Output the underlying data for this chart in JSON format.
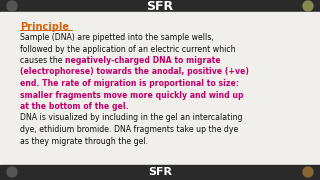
{
  "bg_color": "#f0efeb",
  "title_color": "#d4640a",
  "highlight_color": "#c0006a",
  "body_color": "#111111",
  "title": "Principle",
  "lines": [
    {
      "text": "Sample (DNA) are pipetted into the sample wells,",
      "color": "body",
      "bold": false
    },
    {
      "text": "followed by the application of an electric current which",
      "color": "body",
      "bold": false
    },
    {
      "text": "causes the ",
      "color": "body",
      "bold": false,
      "mixed": true,
      "rest": "negatively-charged DNA to migrate"
    },
    {
      "text": "(electrophorese) towards the anodal, positive (+ve)",
      "color": "highlight",
      "bold": true
    },
    {
      "text": "end. The rate of migration is proportional to size:",
      "color": "highlight",
      "bold": true
    },
    {
      "text": "smaller fragments move more quickly and wind up",
      "color": "highlight",
      "bold": true
    },
    {
      "text": "at the bottom of the gel.",
      "color": "highlight",
      "bold": true
    },
    {
      "text": "DNA is visualized by including in the gel an intercalating",
      "color": "body",
      "bold": false
    },
    {
      "text": "dye, ethidium bromide. DNA fragments take up the dye",
      "color": "body",
      "bold": false
    },
    {
      "text": "as they migrate through the gel.",
      "color": "body",
      "bold": false
    }
  ],
  "header_text": "SFR",
  "footer_text": "SFR",
  "top_bar_color": "#333333",
  "figsize": [
    3.2,
    1.8
  ],
  "dpi": 100
}
